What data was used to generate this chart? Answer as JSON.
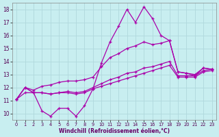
{
  "xlabel": "Windchill (Refroidissement éolien,°C)",
  "bg_color": "#c8eef0",
  "grid_color": "#b0d8dc",
  "line_color": "#aa00aa",
  "xlim": [
    -0.5,
    23.5
  ],
  "ylim": [
    9.5,
    18.5
  ],
  "xticks": [
    0,
    1,
    2,
    3,
    4,
    5,
    6,
    7,
    8,
    9,
    10,
    11,
    12,
    13,
    14,
    15,
    16,
    17,
    18,
    19,
    20,
    21,
    22,
    23
  ],
  "yticks": [
    10,
    11,
    12,
    13,
    14,
    15,
    16,
    17,
    18
  ],
  "lines": [
    {
      "x": [
        0,
        1,
        2,
        3,
        4,
        5,
        6,
        7,
        8,
        9,
        10,
        11,
        12,
        13,
        14,
        15,
        16,
        17,
        18,
        19,
        20,
        21,
        22,
        23
      ],
      "y": [
        11.1,
        12.0,
        11.6,
        10.2,
        9.8,
        10.4,
        10.4,
        9.8,
        10.6,
        11.9,
        13.9,
        15.5,
        16.7,
        18.0,
        17.0,
        18.2,
        17.3,
        16.0,
        15.6,
        13.2,
        13.1,
        12.9,
        13.5,
        13.4
      ]
    },
    {
      "x": [
        0,
        1,
        2,
        3,
        4,
        5,
        6,
        7,
        8,
        9,
        10,
        11,
        12,
        13,
        14,
        15,
        16,
        17,
        18,
        19,
        20,
        21,
        22,
        23
      ],
      "y": [
        11.1,
        12.0,
        11.8,
        12.1,
        12.2,
        12.4,
        12.5,
        12.5,
        12.6,
        12.8,
        13.6,
        14.3,
        14.6,
        15.0,
        15.2,
        15.5,
        15.3,
        15.4,
        15.6,
        13.2,
        13.1,
        13.0,
        13.5,
        13.4
      ]
    },
    {
      "x": [
        0,
        1,
        2,
        3,
        4,
        5,
        6,
        7,
        8,
        9,
        10,
        11,
        12,
        13,
        14,
        15,
        16,
        17,
        18,
        19,
        20,
        21,
        22,
        23
      ],
      "y": [
        11.1,
        12.0,
        11.6,
        11.6,
        11.5,
        11.6,
        11.7,
        11.6,
        11.7,
        12.0,
        12.3,
        12.6,
        12.8,
        13.1,
        13.2,
        13.5,
        13.6,
        13.8,
        14.0,
        12.9,
        12.9,
        12.9,
        13.3,
        13.4
      ]
    },
    {
      "x": [
        0,
        1,
        2,
        3,
        4,
        5,
        6,
        7,
        8,
        9,
        10,
        11,
        12,
        13,
        14,
        15,
        16,
        17,
        18,
        19,
        20,
        21,
        22,
        23
      ],
      "y": [
        11.1,
        11.6,
        11.6,
        11.6,
        11.5,
        11.6,
        11.6,
        11.5,
        11.6,
        11.9,
        12.1,
        12.3,
        12.5,
        12.7,
        12.9,
        13.1,
        13.3,
        13.5,
        13.7,
        12.8,
        12.8,
        12.8,
        13.2,
        13.3
      ]
    }
  ]
}
